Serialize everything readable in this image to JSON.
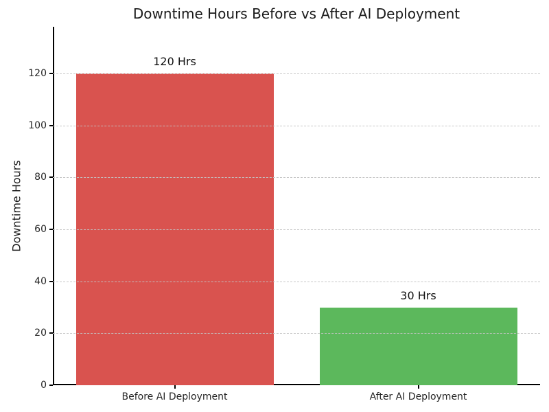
{
  "chart_data": {
    "type": "bar",
    "title": "Downtime Hours Before vs After AI Deployment",
    "xlabel": "",
    "ylabel": "Downtime Hours",
    "categories": [
      "Before AI Deployment",
      "After AI Deployment"
    ],
    "values": [
      120,
      30
    ],
    "bar_labels": [
      "120 Hrs",
      "30 Hrs"
    ],
    "bar_colors": [
      "#d9534f",
      "#5cb85c"
    ],
    "yticks": [
      0,
      20,
      40,
      60,
      80,
      100,
      120
    ],
    "ylim": [
      0,
      138
    ],
    "grid": "horizontal-dashed",
    "legend_position": "none"
  },
  "colors": {
    "grid": "#c3c3c3",
    "axis": "#000000",
    "title_text": "#1a1a1a",
    "tick_text": "#262626"
  }
}
